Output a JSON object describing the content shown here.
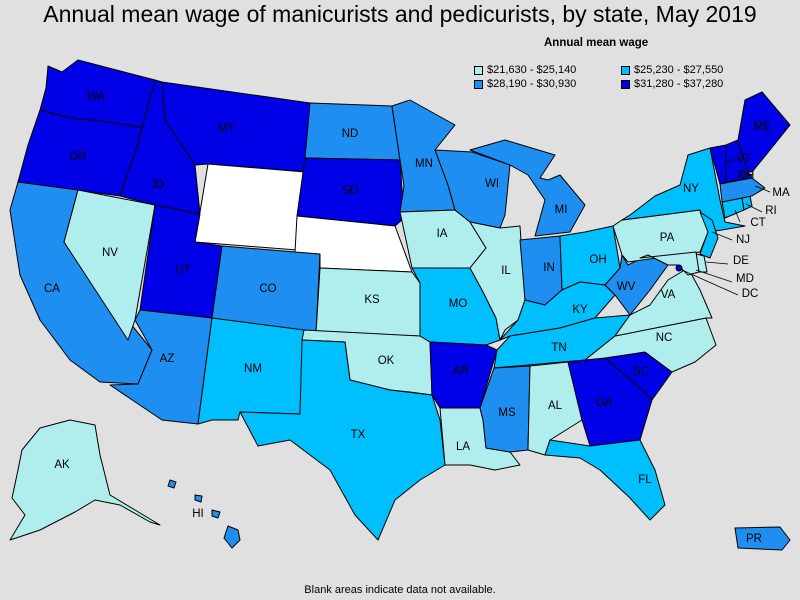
{
  "title": "Annual mean wage of manicurists and pedicurists, by state, May 2019",
  "legend": {
    "title": "Annual mean wage",
    "items": [
      {
        "label": "$21,630 - $25,140",
        "color": "#b0eeee"
      },
      {
        "label": "$25,230 - $27,550",
        "color": "#00bfff"
      },
      {
        "label": "$28,190 - $30,930",
        "color": "#1e8ef0"
      },
      {
        "label": "$31,280 - $37,280",
        "color": "#0000e6"
      }
    ]
  },
  "footnote": "Blank areas indicate data not available.",
  "no_data_color": "#ffffff",
  "states": {
    "WA": {
      "label": "WA",
      "bin": 3
    },
    "OR": {
      "label": "OR",
      "bin": 3
    },
    "CA": {
      "label": "CA",
      "bin": 2
    },
    "NV": {
      "label": "NV",
      "bin": 0
    },
    "ID": {
      "label": "ID",
      "bin": 3
    },
    "MT": {
      "label": "MT",
      "bin": 3
    },
    "WY": {
      "label": "",
      "bin": null
    },
    "UT": {
      "label": "UT",
      "bin": 3
    },
    "AZ": {
      "label": "AZ",
      "bin": 2
    },
    "CO": {
      "label": "CO",
      "bin": 2
    },
    "NM": {
      "label": "NM",
      "bin": 1
    },
    "ND": {
      "label": "ND",
      "bin": 2
    },
    "SD": {
      "label": "SD",
      "bin": 3
    },
    "NE": {
      "label": "",
      "bin": null
    },
    "KS": {
      "label": "KS",
      "bin": 0
    },
    "OK": {
      "label": "OK",
      "bin": 0
    },
    "TX": {
      "label": "TX",
      "bin": 1
    },
    "MN": {
      "label": "MN",
      "bin": 2
    },
    "IA": {
      "label": "IA",
      "bin": 0
    },
    "MO": {
      "label": "MO",
      "bin": 1
    },
    "AR": {
      "label": "AR",
      "bin": 3
    },
    "LA": {
      "label": "LA",
      "bin": 0
    },
    "WI": {
      "label": "WI",
      "bin": 2
    },
    "IL": {
      "label": "IL",
      "bin": 0
    },
    "MI": {
      "label": "MI",
      "bin": 2
    },
    "IN": {
      "label": "IN",
      "bin": 2
    },
    "OH": {
      "label": "OH",
      "bin": 1
    },
    "KY": {
      "label": "KY",
      "bin": 1
    },
    "TN": {
      "label": "TN",
      "bin": 1
    },
    "MS": {
      "label": "MS",
      "bin": 2
    },
    "AL": {
      "label": "AL",
      "bin": 0
    },
    "GA": {
      "label": "GA",
      "bin": 3
    },
    "FL": {
      "label": "FL",
      "bin": 1
    },
    "SC": {
      "label": "SC",
      "bin": 3
    },
    "NC": {
      "label": "NC",
      "bin": 0
    },
    "VA": {
      "label": "VA",
      "bin": 0
    },
    "WV": {
      "label": "WV",
      "bin": 2
    },
    "PA": {
      "label": "PA",
      "bin": 0
    },
    "NY": {
      "label": "NY",
      "bin": 1
    },
    "VT": {
      "label": "VT",
      "bin": 3
    },
    "NH": {
      "label": "NH",
      "bin": 3
    },
    "ME": {
      "label": "ME",
      "bin": 3
    },
    "MA": {
      "label": "MA",
      "bin": 2
    },
    "CT": {
      "label": "CT",
      "bin": 1
    },
    "RI": {
      "label": "RI",
      "bin": 1
    },
    "NJ": {
      "label": "NJ",
      "bin": 1
    },
    "DE": {
      "label": "DE",
      "bin": 0
    },
    "MD": {
      "label": "MD",
      "bin": 0
    },
    "DC": {
      "label": "DC",
      "bin": 3
    },
    "AK": {
      "label": "AK",
      "bin": 0
    },
    "HI": {
      "label": "HI",
      "bin": 2
    },
    "PR": {
      "label": "PR",
      "bin": 2
    }
  }
}
